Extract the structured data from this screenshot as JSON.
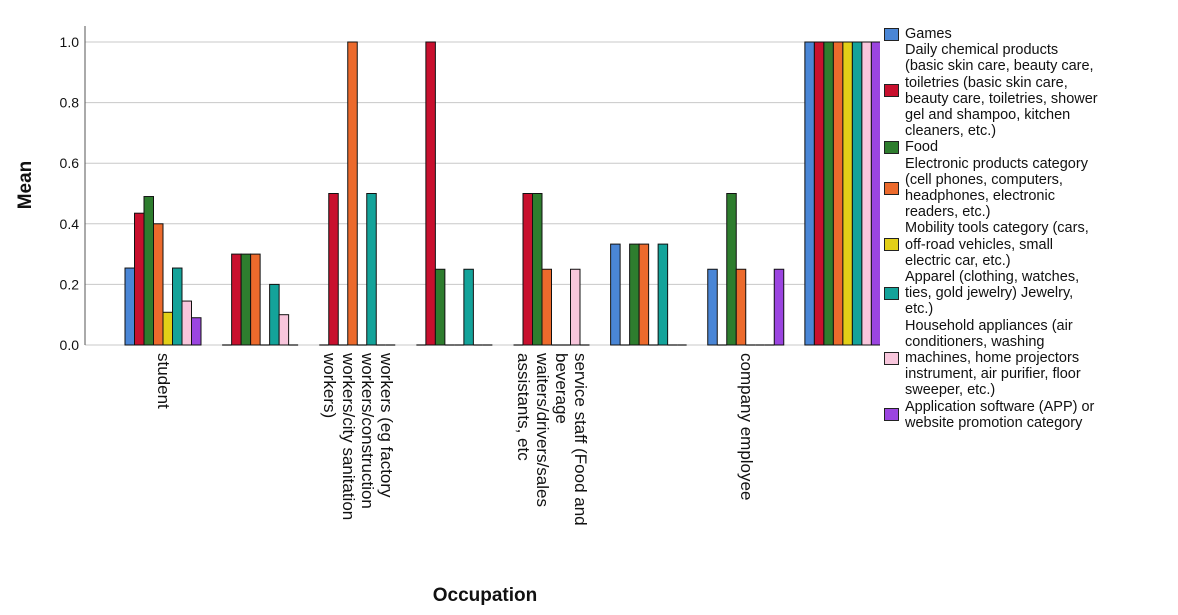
{
  "chart_data": {
    "type": "bar",
    "xlabel": "Occupation",
    "ylabel": "Mean",
    "ylim": [
      0,
      1.0
    ],
    "yticks": [
      "0.0",
      "0.2",
      "0.4",
      "0.6",
      "0.8",
      "1.0"
    ],
    "grid": "horizontal",
    "legend_position": "right",
    "categories": [
      "student",
      "",
      "workers (eg factory\nworkers/construction\nworkers/city sanitation\nworkers)",
      "",
      "service staff (Food and\nbeverage\nwaiters/drivers/sales\nassistants, etc",
      "",
      "company employee",
      ""
    ],
    "series": [
      {
        "name": "Games",
        "color": "#4a86d6",
        "values": [
          0.254,
          0,
          0,
          0,
          0,
          0.333,
          0.25,
          1.0
        ]
      },
      {
        "name": "Daily chemical products\n(basic skin care, beauty care,\ntoiletries (basic skin care,\nbeauty care, toiletries, shower\ngel and shampoo, kitchen\ncleaners, etc.)",
        "color": "#c8102e",
        "values": [
          0.435,
          0.3,
          0.5,
          1.0,
          0.5,
          0,
          0,
          1.0
        ]
      },
      {
        "name": "Food",
        "color": "#2e7d2e",
        "values": [
          0.49,
          0.3,
          0,
          0.25,
          0.5,
          0.333,
          0.5,
          1.0
        ]
      },
      {
        "name": "Electronic products category\n(cell phones, computers,\nheadphones, electronic\nreaders, etc.)",
        "color": "#ec6a2c",
        "values": [
          0.4,
          0.3,
          1.0,
          0,
          0.25,
          0.333,
          0.25,
          1.0
        ]
      },
      {
        "name": "Mobility tools category (cars,\noff-road vehicles, small\nelectric car, etc.)",
        "color": "#e2cf17",
        "values": [
          0.108,
          0,
          0,
          0,
          0,
          0,
          0,
          1.0
        ]
      },
      {
        "name": "Apparel (clothing, watches,\nties, gold jewelry) Jewelry,\netc.)",
        "color": "#14a39a",
        "values": [
          0.254,
          0.2,
          0.5,
          0.25,
          0,
          0.333,
          0,
          1.0
        ]
      },
      {
        "name": "Household appliances (air\nconditioners, washing\nmachines, home projectors\ninstrument, air purifier, floor\nsweeper, etc.)",
        "color": "#f8c6dc",
        "values": [
          0.145,
          0.1,
          0,
          0,
          0.25,
          0,
          0,
          1.0
        ]
      },
      {
        "name": "Application software (APP) or\nwebsite promotion category",
        "color": "#9b45e0",
        "values": [
          0.09,
          0,
          0,
          0,
          0,
          0,
          0.25,
          1.0
        ]
      }
    ]
  }
}
